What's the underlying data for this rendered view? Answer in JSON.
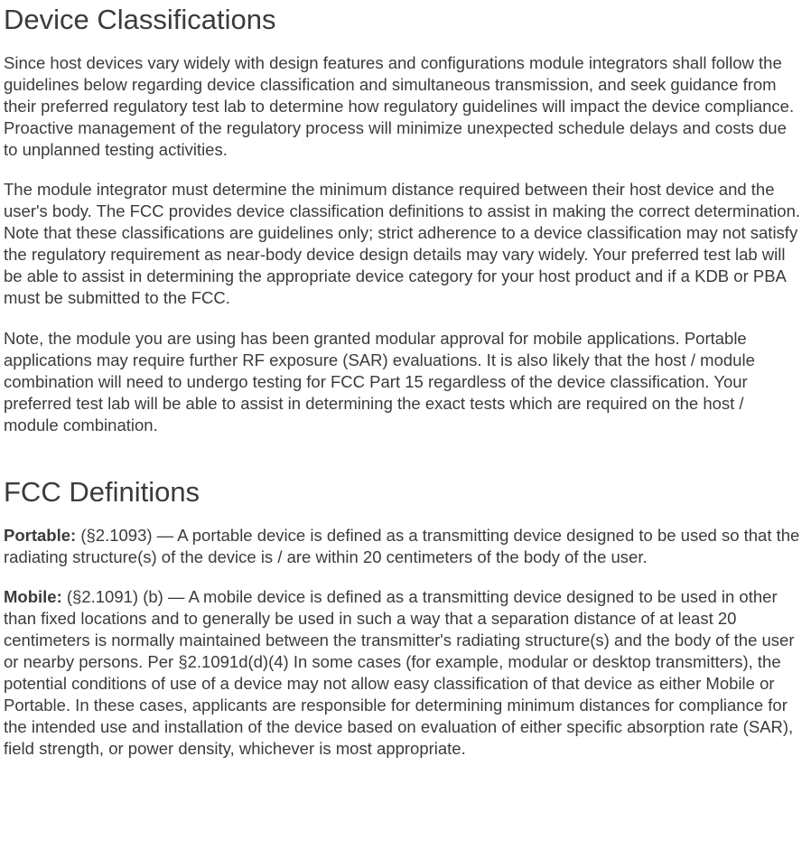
{
  "section1": {
    "heading": "Device Classifications",
    "para1": "Since host devices vary widely with design features and configurations module integrators shall follow the guidelines below regarding device classification and simultaneous transmission, and seek guidance from their preferred regulatory test lab to determine how regulatory guidelines will impact the device compliance. Proactive management of the regulatory process will minimize unexpected schedule delays and costs due to unplanned testing activities.",
    "para2": "The module integrator must determine the minimum distance required between their host device and the user's body. The FCC provides device classification definitions to assist in making the correct determination.  Note that these classifications are guidelines only; strict adherence to a device classification may not satisfy the regulatory requirement as near-body device design details may vary widely.  Your preferred test lab will be able to assist in determining the appropriate device category for your host product and if a KDB or PBA must be submitted to the FCC.",
    "para3": "Note, the module you are using has been granted modular approval for mobile applications.  Portable applications may require further RF exposure (SAR) evaluations.  It is also likely that the host / module combination will need to undergo testing for FCC Part 15 regardless of the device classification.  Your preferred test lab will be able to assist in determining the exact tests which are required on the host / module combination."
  },
  "section2": {
    "heading": "FCC Definitions",
    "def1": {
      "label": "Portable:",
      "body": " (§2.1093) — A portable device is defined as a transmitting device designed to be used so that the radiating structure(s) of the device is / are within 20 centimeters of the body of the user."
    },
    "def2": {
      "label": "Mobile:",
      "body": " (§2.1091) (b) — A mobile device is defined as a transmitting device designed to be used in other than fixed locations and to generally be used in such a way that a separation distance of at least 20 centimeters is normally maintained between the transmitter's radiating structure(s) and the body of the user or nearby persons.  Per §2.1091d(d)(4) In some cases (for example, modular or desktop transmitters), the potential conditions of use of a device may not allow easy classification of that device as either Mobile or Portable. In these cases, applicants are responsible for determining minimum distances for compliance for the intended use and installation of the device based on evaluation of either specific absorption rate (SAR), field strength, or power density, whichever is most appropriate."
    }
  },
  "colors": {
    "text": "#3b3b3b",
    "background": "#ffffff"
  },
  "typography": {
    "heading_fontsize": 31,
    "body_fontsize": 18.5,
    "heading_weight": 400,
    "body_weight": 400,
    "def_label_weight": 700,
    "font_family": "Arial, Helvetica, sans-serif"
  }
}
